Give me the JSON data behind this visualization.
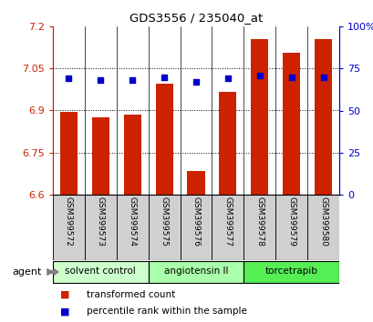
{
  "title": "GDS3556 / 235040_at",
  "samples": [
    "GSM399572",
    "GSM399573",
    "GSM399574",
    "GSM399575",
    "GSM399576",
    "GSM399577",
    "GSM399578",
    "GSM399579",
    "GSM399580"
  ],
  "bar_values": [
    6.895,
    6.875,
    6.885,
    6.995,
    6.685,
    6.965,
    7.155,
    7.105,
    7.155
  ],
  "percentile_values": [
    69,
    68,
    68,
    70,
    67,
    69,
    71,
    70,
    70
  ],
  "ylim_left": [
    6.6,
    7.2
  ],
  "ylim_right": [
    0,
    100
  ],
  "yticks_left": [
    6.6,
    6.75,
    6.9,
    7.05,
    7.2
  ],
  "yticks_right": [
    0,
    25,
    50,
    75,
    100
  ],
  "ytick_labels_left": [
    "6.6",
    "6.75",
    "6.9",
    "7.05",
    "7.2"
  ],
  "ytick_labels_right": [
    "0",
    "25",
    "50",
    "75",
    "100%"
  ],
  "bar_color": "#cc2200",
  "marker_color": "#0000cc",
  "left_tick_color": "#cc2200",
  "right_tick_color": "#0000cc",
  "groups": [
    {
      "label": "solvent control",
      "start": 0,
      "end": 3,
      "color": "#ccffcc"
    },
    {
      "label": "angiotensin II",
      "start": 3,
      "end": 6,
      "color": "#aaffaa"
    },
    {
      "label": "torcetrapib",
      "start": 6,
      "end": 9,
      "color": "#55ee55"
    }
  ],
  "agent_label": "agent",
  "legend_items": [
    {
      "label": "transformed count",
      "color": "#cc2200"
    },
    {
      "label": "percentile rank within the sample",
      "color": "#0000cc"
    }
  ],
  "bar_width": 0.55,
  "cell_bg": "#d0d0d0"
}
